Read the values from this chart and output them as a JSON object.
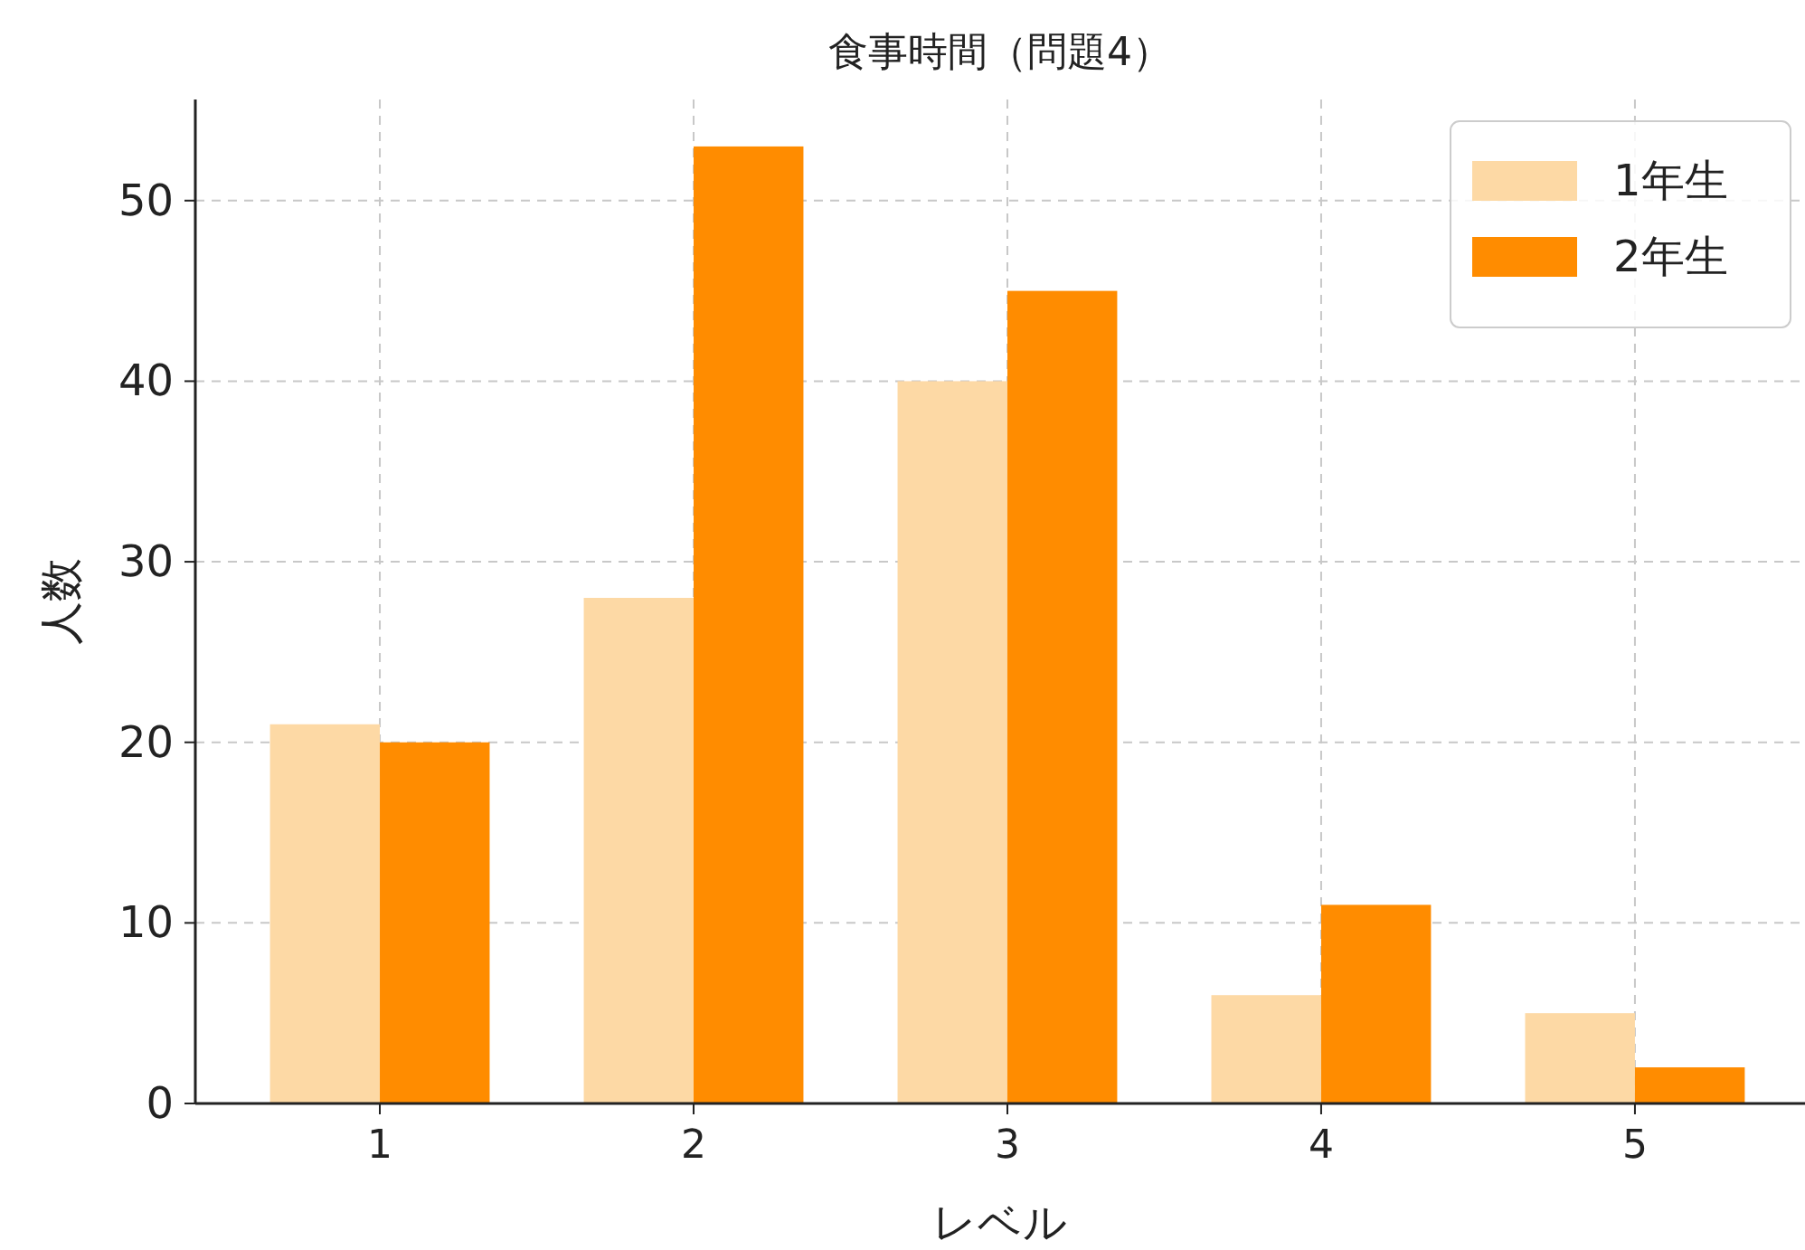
{
  "chart_data": {
    "type": "bar",
    "title": "食事時間（問題4）",
    "xlabel": "レベル",
    "ylabel": "人数",
    "categories": [
      "1",
      "2",
      "3",
      "4",
      "5"
    ],
    "series": [
      {
        "name": "1年生",
        "color": "#fdd9a5",
        "values": [
          21,
          28,
          40,
          6,
          5
        ]
      },
      {
        "name": "2年生",
        "color": "#ff8c00",
        "values": [
          20,
          53,
          45,
          11,
          2
        ]
      }
    ],
    "ylim": [
      0,
      55.6
    ],
    "yticks": [
      0,
      10,
      20,
      30,
      40,
      50
    ],
    "grid": true,
    "legend": "top right"
  }
}
